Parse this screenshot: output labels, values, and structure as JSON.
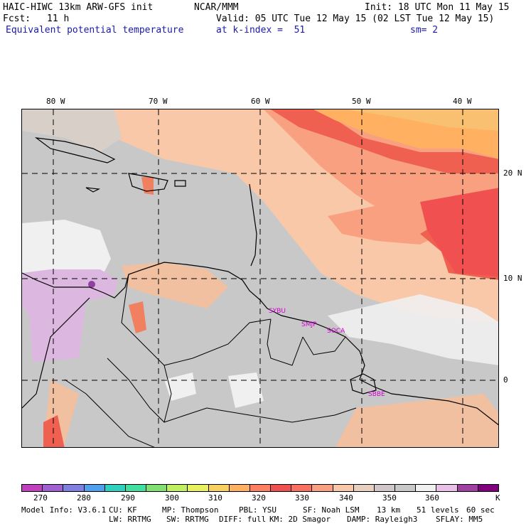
{
  "header": {
    "line1_left": "HAIC-HIWC 13km ARW-GFS init",
    "line1_mid": "NCAR/MMM",
    "line1_right": "Init: 18 UTC Mon 11 May 15",
    "fcst_label": "Fcst:",
    "fcst_value": "11 h",
    "valid": "Valid: 05 UTC Tue 12 May 15 (02 LST Tue 12 May 15)",
    "field_name": "Equivalent potential temperature",
    "level": "at k-index =  51",
    "smoothing": "sm= 2"
  },
  "map": {
    "lon_labels": [
      "80 W",
      "70 W",
      "60 W",
      "50 W",
      "40 W"
    ],
    "lat_labels": [
      "20 N",
      "10 N",
      "0"
    ],
    "stations": [
      "SYBU",
      "SMJP",
      "SOCA",
      "SBBE"
    ]
  },
  "colorbar": {
    "colors": [
      "#c040c0",
      "#a060d0",
      "#8080e0",
      "#50a0f0",
      "#30d0c0",
      "#40e0a0",
      "#80e070",
      "#c0f060",
      "#e8f060",
      "#f8d060",
      "#ffb060",
      "#ff8060",
      "#f05050",
      "#f87060",
      "#f8a080",
      "#f8c8a8",
      "#e8d0c0",
      "#d0c8c8",
      "#c8c8c8",
      "#f0f0f0",
      "#e8c0e8",
      "#a040a0",
      "#800080"
    ],
    "ticks": [
      "270",
      "280",
      "290",
      "300",
      "310",
      "320",
      "330",
      "340",
      "350",
      "360"
    ],
    "unit": "K"
  },
  "footer": {
    "model_info": "Model Info: V3.6.1",
    "cu": "CU: KF",
    "mp": "MP: Thompson",
    "pbl": "PBL: YSU",
    "sf": "SF: Noah LSM",
    "res": "13 km",
    "levels": "51 levels",
    "dt": "60 sec",
    "lw": "LW: RRTMG",
    "sw": "SW: RRTMG",
    "diff": "DIFF: full",
    "km": "KM: 2D Smagor",
    "damp": "DAMP: Rayleigh3",
    "sflay": "SFLAY: MM5"
  }
}
